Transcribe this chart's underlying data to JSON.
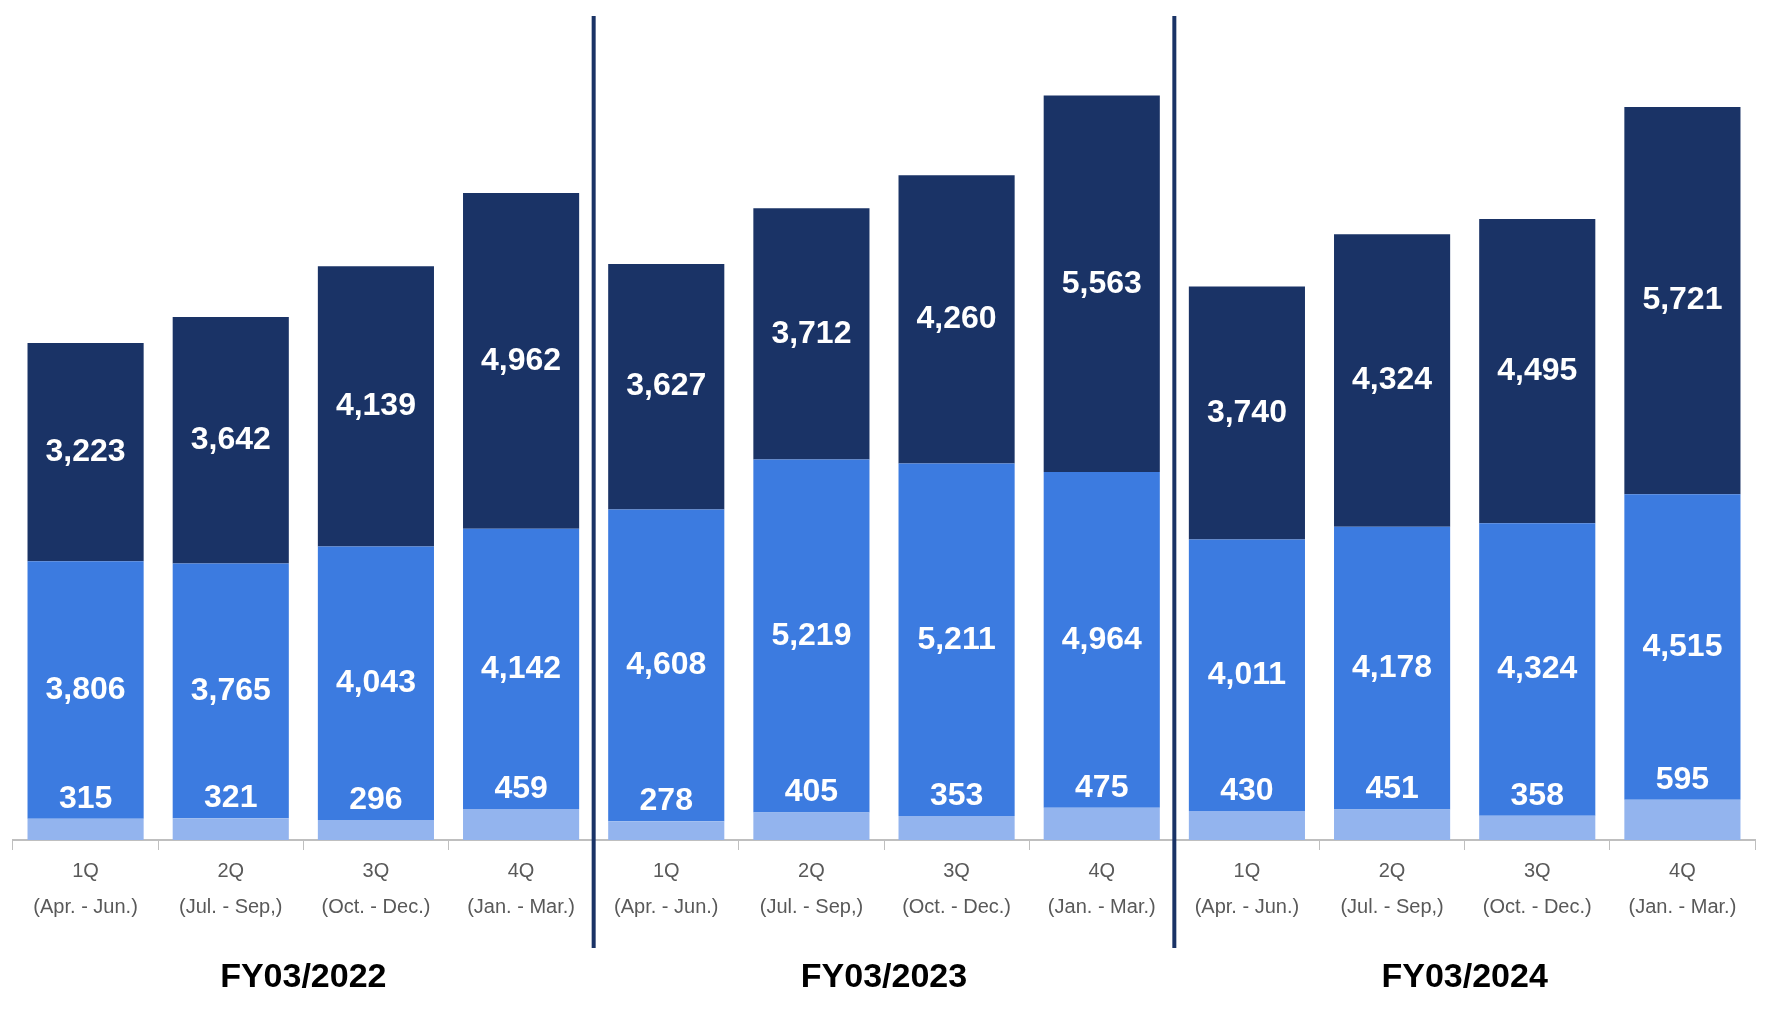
{
  "chart_data": {
    "type": "bar",
    "stacked": true,
    "grid": false,
    "legend": false,
    "tick_labels": "x",
    "categories": [
      "1Q\n(Apr. - Jun.)",
      "2Q\n(Jul. - Sep,)",
      "3Q\n(Oct. - Dec.)",
      "4Q\n(Jan. - Mar.)",
      "1Q\n(Apr. - Jun.)",
      "2Q\n(Jul. - Sep,)",
      "3Q\n(Oct. - Dec.)",
      "4Q\n(Jan. - Mar.)",
      "1Q\n(Apr. - Jun.)",
      "2Q\n(Jul. - Sep,)",
      "3Q\n(Oct. - Dec.)",
      "4Q\n(Jan. - Mar.)"
    ],
    "series": [
      {
        "color": "#93b4ee",
        "values": [
          315,
          321,
          296,
          459,
          278,
          405,
          353,
          475,
          430,
          451,
          358,
          595
        ],
        "value_labels": [
          "315",
          "321",
          "296",
          "459",
          "278",
          "405",
          "353",
          "475",
          "430",
          "451",
          "358",
          "595"
        ]
      },
      {
        "color": "#3c7be0",
        "values": [
          3806,
          3765,
          4043,
          4142,
          4608,
          5219,
          5211,
          4964,
          4011,
          4178,
          4324,
          4515
        ],
        "value_labels": [
          "3,806",
          "3,765",
          "4,043",
          "4,142",
          "4,608",
          "5,219",
          "5,211",
          "4,964",
          "4,011",
          "4,178",
          "4,324",
          "4,515"
        ]
      },
      {
        "color": "#1a3366",
        "values": [
          3223,
          3642,
          4139,
          4962,
          3627,
          3712,
          4260,
          5563,
          3740,
          4324,
          4495,
          5721
        ],
        "value_labels": [
          "3,223",
          "3,642",
          "4,139",
          "4,962",
          "3,627",
          "3,712",
          "4,260",
          "5,563",
          "3,740",
          "4,324",
          "4,495",
          "5,721"
        ]
      }
    ],
    "annotations": [
      "FY03/2022",
      "FY03/2023",
      "FY03/2024"
    ]
  }
}
